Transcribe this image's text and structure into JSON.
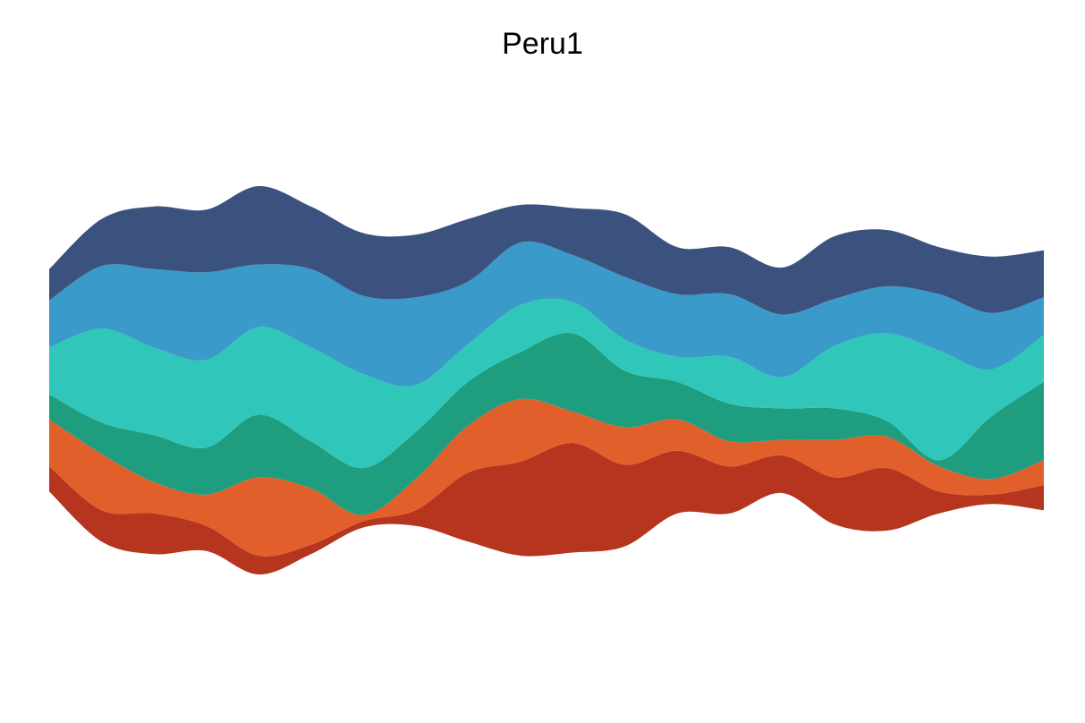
{
  "chart_data": {
    "type": "area",
    "title": "Peru1",
    "xlabel": "",
    "ylabel": "",
    "grid": false,
    "legend": "none",
    "x": [
      1,
      2,
      3,
      4,
      5,
      6,
      7,
      8,
      9,
      10,
      11,
      12,
      13,
      14,
      15,
      16,
      17,
      18,
      19,
      20
    ],
    "series": [
      {
        "color": "#b5351e",
        "values": [
          8,
          10,
          13,
          8,
          6,
          3,
          2,
          5,
          22,
          30,
          35,
          26,
          20,
          15,
          12,
          15,
          20,
          7,
          3,
          8
        ]
      },
      {
        "color": "#e15f2a",
        "values": [
          15,
          18,
          10,
          10,
          25,
          18,
          2,
          10,
          15,
          20,
          10,
          12,
          10,
          8,
          5,
          12,
          10,
          8,
          5,
          8
        ]
      },
      {
        "color": "#1e9e7e",
        "values": [
          8,
          10,
          15,
          15,
          20,
          15,
          15,
          15,
          14,
          15,
          25,
          18,
          12,
          12,
          10,
          10,
          5,
          2,
          20,
          25
        ]
      },
      {
        "color": "#30c6b9",
        "values": [
          15,
          30,
          28,
          28,
          28,
          30,
          30,
          15,
          12,
          15,
          10,
          10,
          8,
          15,
          10,
          20,
          28,
          35,
          15,
          15
        ]
      },
      {
        "color": "#3a9ac9",
        "values": [
          15,
          20,
          25,
          28,
          20,
          25,
          25,
          28,
          20,
          20,
          15,
          20,
          20,
          20,
          20,
          15,
          15,
          18,
          18,
          12
        ]
      },
      {
        "color": "#3b527f",
        "values": [
          10,
          15,
          20,
          20,
          25,
          20,
          20,
          20,
          20,
          12,
          15,
          20,
          15,
          15,
          15,
          20,
          18,
          15,
          18,
          15
        ]
      }
    ]
  }
}
